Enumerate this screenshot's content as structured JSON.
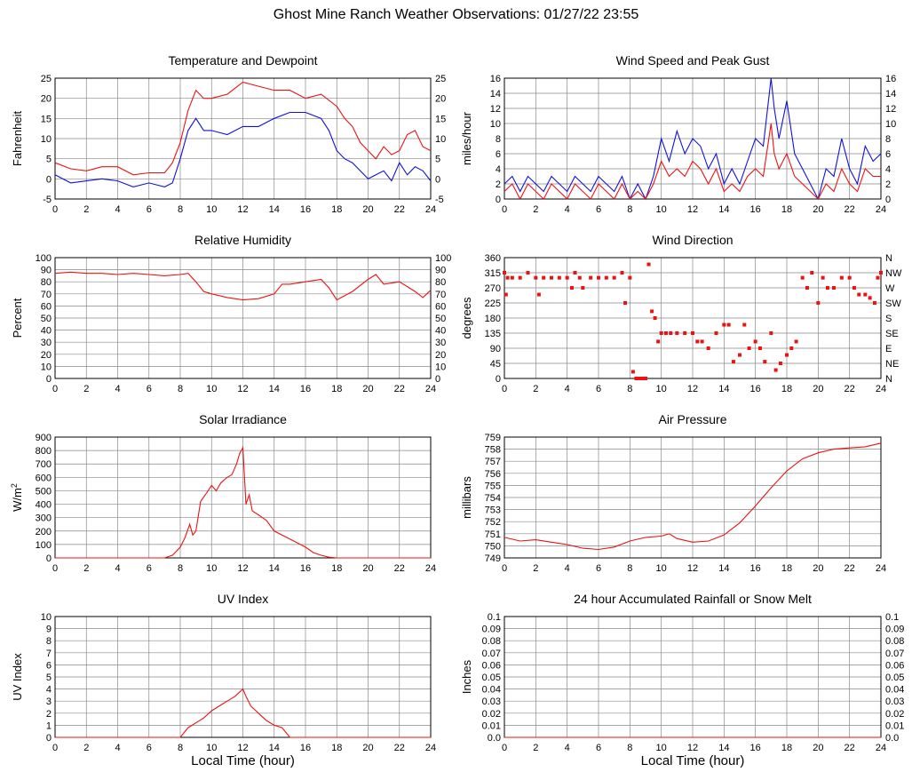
{
  "title": "Ghost Mine Ranch Weather Observations: 01/27/22 23:55",
  "colors": {
    "red": "#ee1111",
    "blue": "#1111dd",
    "grid": "#888888"
  },
  "charts": [
    {
      "id": "temperature",
      "title": "Temperature and Dewpoint",
      "ylabel": "Fahrenheit",
      "xlabel": "",
      "ylim": [
        -5,
        25
      ],
      "yticks": [
        "-5",
        "0",
        "5",
        "10",
        "15",
        "20",
        "25"
      ],
      "right_axis": true,
      "right_ticks": [
        "-5",
        "0",
        "5",
        "10",
        "15",
        "20",
        "25"
      ],
      "xticks": [
        "0",
        "2",
        "4",
        "6",
        "8",
        "10",
        "12",
        "14",
        "16",
        "18",
        "20",
        "22",
        "24"
      ],
      "type": "line",
      "series": [
        {
          "color": "red",
          "x": [
            0,
            1,
            2,
            3,
            4,
            5,
            6,
            7,
            7.5,
            8,
            8.5,
            9,
            9.5,
            10,
            11,
            12,
            13,
            14,
            15,
            16,
            17,
            18,
            18.5,
            19,
            19.5,
            20,
            20.5,
            21,
            21.5,
            22,
            22.5,
            23,
            23.5,
            24
          ],
          "y": [
            4,
            2.5,
            2,
            3,
            3,
            1,
            1.5,
            1.5,
            4,
            9,
            17,
            22,
            20,
            20,
            21,
            24,
            23,
            22,
            22,
            20,
            21,
            18,
            15,
            13,
            9,
            7,
            5,
            8,
            6,
            7,
            11,
            12,
            8,
            7
          ]
        },
        {
          "color": "blue",
          "x": [
            0,
            1,
            2,
            3,
            4,
            5,
            6,
            7,
            7.5,
            8,
            8.5,
            9,
            9.5,
            10,
            11,
            12,
            13,
            14,
            15,
            16,
            17,
            17.5,
            18,
            18.5,
            19,
            19.5,
            20,
            20.5,
            21,
            21.5,
            22,
            22.5,
            23,
            23.5,
            24
          ],
          "y": [
            1,
            -1,
            -0.5,
            0,
            -0.5,
            -2,
            -1,
            -2,
            -1,
            5,
            12,
            15,
            12,
            12,
            11,
            13,
            13,
            15,
            16.5,
            16.5,
            15,
            12,
            7,
            5,
            4,
            2,
            0,
            1,
            2,
            -0.5,
            4,
            1,
            3,
            2,
            -0.5
          ]
        }
      ]
    },
    {
      "id": "wind_speed",
      "title": "Wind Speed and Peak Gust",
      "ylabel": "miles/hour",
      "xlabel": "",
      "ylim": [
        0,
        16
      ],
      "yticks": [
        "0",
        "2",
        "4",
        "6",
        "8",
        "10",
        "12",
        "14",
        "16"
      ],
      "right_axis": true,
      "right_ticks": [
        "0",
        "2",
        "4",
        "6",
        "8",
        "10",
        "12",
        "14",
        "16"
      ],
      "xticks": [
        "0",
        "2",
        "4",
        "6",
        "8",
        "10",
        "12",
        "14",
        "16",
        "18",
        "20",
        "22",
        "24"
      ],
      "type": "line",
      "series": [
        {
          "color": "blue",
          "x": [
            0,
            0.5,
            1,
            1.5,
            2,
            2.5,
            3,
            3.5,
            4,
            4.5,
            5,
            5.5,
            6,
            6.5,
            7,
            7.5,
            8,
            8.5,
            9,
            9.5,
            10,
            10.5,
            11,
            11.5,
            12,
            12.5,
            13,
            13.5,
            14,
            14.5,
            15,
            15.5,
            16,
            16.5,
            17,
            17.2,
            17.5,
            18,
            18.5,
            19,
            19.5,
            20,
            20.5,
            21,
            21.5,
            22,
            22.5,
            23,
            23.5,
            24
          ],
          "y": [
            2,
            3,
            1,
            3,
            2,
            1,
            3,
            2,
            1,
            3,
            2,
            1,
            3,
            2,
            1,
            3,
            0,
            2,
            0,
            3,
            8,
            5,
            9,
            6,
            8,
            7,
            4,
            6,
            2,
            4,
            2,
            5,
            8,
            7,
            16,
            12,
            8,
            13,
            6,
            4,
            2,
            0,
            4,
            3,
            8,
            4,
            2,
            7,
            5,
            6
          ]
        },
        {
          "color": "red",
          "x": [
            0,
            0.5,
            1,
            1.5,
            2,
            2.5,
            3,
            3.5,
            4,
            4.5,
            5,
            5.5,
            6,
            6.5,
            7,
            7.5,
            8,
            8.5,
            9,
            9.5,
            10,
            10.5,
            11,
            11.5,
            12,
            12.5,
            13,
            13.5,
            14,
            14.5,
            15,
            15.5,
            16,
            16.5,
            17,
            17.2,
            17.5,
            18,
            18.5,
            19,
            19.5,
            20,
            20.5,
            21,
            21.5,
            22,
            22.5,
            23,
            23.5,
            24
          ],
          "y": [
            1,
            2,
            0,
            2,
            1,
            0,
            2,
            1,
            0,
            2,
            1,
            0,
            2,
            1,
            0,
            2,
            0,
            1,
            0,
            2,
            5,
            3,
            4,
            3,
            5,
            4,
            2,
            4,
            1,
            2,
            1,
            3,
            4,
            3,
            10,
            6,
            4,
            6,
            3,
            2,
            1,
            0,
            2,
            1,
            4,
            2,
            1,
            4,
            3,
            3
          ]
        }
      ]
    },
    {
      "id": "humidity",
      "title": "Relative Humidity",
      "ylabel": "Percent",
      "xlabel": "",
      "ylim": [
        0,
        100
      ],
      "yticks": [
        "0",
        "10",
        "20",
        "30",
        "40",
        "50",
        "60",
        "70",
        "80",
        "90",
        "100"
      ],
      "right_axis": true,
      "right_ticks": [
        "0",
        "10",
        "20",
        "30",
        "40",
        "50",
        "60",
        "70",
        "80",
        "90",
        "100"
      ],
      "xticks": [
        "0",
        "2",
        "4",
        "6",
        "8",
        "10",
        "12",
        "14",
        "16",
        "18",
        "20",
        "22",
        "24"
      ],
      "type": "line",
      "series": [
        {
          "color": "red",
          "x": [
            0,
            1,
            2,
            3,
            4,
            5,
            6,
            7,
            8,
            8.5,
            9,
            9.5,
            10,
            11,
            12,
            13,
            14,
            14.5,
            15,
            16,
            17,
            17.5,
            18,
            19,
            20,
            20.5,
            21,
            22,
            22.5,
            23,
            23.5,
            24
          ],
          "y": [
            87,
            88,
            87,
            87,
            86,
            87,
            86,
            85,
            86,
            87,
            80,
            72,
            70,
            67,
            65,
            66,
            70,
            78,
            78,
            80,
            82,
            75,
            65,
            72,
            82,
            86,
            78,
            80,
            76,
            72,
            67,
            73
          ]
        }
      ]
    },
    {
      "id": "wind_direction",
      "title": "Wind Direction",
      "ylabel": "degrees",
      "xlabel": "",
      "ylim": [
        0,
        360
      ],
      "yticks": [
        "0",
        "45",
        "90",
        "135",
        "180",
        "225",
        "270",
        "315",
        "360"
      ],
      "right_axis": true,
      "right_ticks": [
        "N",
        "NE",
        "E",
        "SE",
        "S",
        "SW",
        "W",
        "NW",
        "N"
      ],
      "xticks": [
        "0",
        "2",
        "4",
        "6",
        "8",
        "10",
        "12",
        "14",
        "16",
        "18",
        "20",
        "22",
        "24"
      ],
      "type": "scatter",
      "series": [
        {
          "color": "red",
          "x": [
            0,
            0.1,
            0.2,
            0.5,
            1,
            1.5,
            2,
            2.2,
            2.5,
            3,
            3.5,
            4,
            4.3,
            4.5,
            4.8,
            5,
            5.5,
            6,
            6.5,
            7,
            7.5,
            7.7,
            8,
            8.2,
            8.4,
            8.6,
            8.8,
            9,
            9.2,
            9.4,
            9.6,
            9.8,
            10,
            10.3,
            10.6,
            11,
            11.5,
            12,
            12.3,
            12.6,
            13,
            13.5,
            14,
            14.3,
            14.6,
            15,
            15.3,
            15.6,
            16,
            16.3,
            16.6,
            17,
            17.3,
            17.6,
            18,
            18.3,
            18.6,
            19,
            19.3,
            19.6,
            20,
            20.3,
            20.6,
            21,
            21.5,
            22,
            22.3,
            22.6,
            23,
            23.3,
            23.6,
            23.8,
            24
          ],
          "y": [
            315,
            250,
            300,
            300,
            300,
            315,
            300,
            250,
            300,
            300,
            300,
            300,
            270,
            315,
            300,
            270,
            300,
            300,
            300,
            300,
            315,
            225,
            300,
            20,
            0,
            0,
            0,
            0,
            340,
            200,
            180,
            110,
            135,
            135,
            135,
            135,
            135,
            135,
            110,
            110,
            90,
            135,
            160,
            160,
            50,
            70,
            160,
            90,
            110,
            90,
            50,
            135,
            25,
            45,
            70,
            90,
            110,
            300,
            270,
            315,
            225,
            300,
            270,
            270,
            300,
            300,
            270,
            250,
            250,
            240,
            225,
            300,
            315
          ]
        }
      ]
    },
    {
      "id": "solar",
      "title": "Solar Irradiance",
      "ylabel": "W/m2",
      "xlabel": "",
      "ylim": [
        0,
        900
      ],
      "yticks": [
        "0",
        "100",
        "200",
        "300",
        "400",
        "500",
        "600",
        "700",
        "800",
        "900"
      ],
      "right_axis": false,
      "right_ticks": [],
      "xticks": [
        "0",
        "2",
        "4",
        "6",
        "8",
        "10",
        "12",
        "14",
        "16",
        "18",
        "20",
        "22",
        "24"
      ],
      "type": "line",
      "series": [
        {
          "color": "red",
          "x": [
            0,
            7,
            7.5,
            8,
            8.3,
            8.6,
            8.8,
            9,
            9.3,
            9.6,
            10,
            10.3,
            10.6,
            11,
            11.3,
            11.6,
            11.8,
            12,
            12.2,
            12.4,
            12.6,
            13,
            13.5,
            14,
            15,
            16,
            16.5,
            17,
            17.5,
            18,
            24
          ],
          "y": [
            0,
            0,
            20,
            80,
            150,
            250,
            170,
            200,
            420,
            470,
            540,
            500,
            560,
            600,
            620,
            700,
            780,
            820,
            400,
            470,
            350,
            320,
            280,
            200,
            140,
            80,
            40,
            20,
            5,
            0,
            0
          ]
        }
      ]
    },
    {
      "id": "pressure",
      "title": "Air Pressure",
      "ylabel": "millibars",
      "xlabel": "",
      "ylim": [
        749,
        759
      ],
      "yticks": [
        "749",
        "750",
        "751",
        "752",
        "753",
        "754",
        "755",
        "756",
        "757",
        "758",
        "759"
      ],
      "right_axis": false,
      "right_ticks": [],
      "xticks": [
        "0",
        "2",
        "4",
        "6",
        "8",
        "10",
        "12",
        "14",
        "16",
        "18",
        "20",
        "22",
        "24"
      ],
      "type": "line",
      "series": [
        {
          "color": "red",
          "x": [
            0,
            1,
            2,
            3,
            4,
            5,
            6,
            7,
            8,
            9,
            10,
            10.5,
            11,
            12,
            13,
            14,
            15,
            16,
            17,
            18,
            19,
            20,
            21,
            22,
            23,
            24
          ],
          "y": [
            750.7,
            750.4,
            750.5,
            750.3,
            750.1,
            749.8,
            749.7,
            749.9,
            750.4,
            750.7,
            750.8,
            751.0,
            750.6,
            750.3,
            750.4,
            750.9,
            751.9,
            753.3,
            754.8,
            756.2,
            757.2,
            757.7,
            758.0,
            758.1,
            758.2,
            758.5
          ]
        }
      ]
    },
    {
      "id": "uv",
      "title": "UV Index",
      "ylabel": "UV Index",
      "xlabel": "Local Time (hour)",
      "ylim": [
        0,
        10
      ],
      "yticks": [
        "0",
        "1",
        "2",
        "3",
        "4",
        "5",
        "6",
        "7",
        "8",
        "9",
        "10"
      ],
      "right_axis": false,
      "right_ticks": [],
      "xticks": [
        "0",
        "2",
        "4",
        "6",
        "8",
        "10",
        "12",
        "14",
        "16",
        "18",
        "20",
        "22",
        "24"
      ],
      "type": "line",
      "series": [
        {
          "color": "red",
          "x": [
            0,
            8,
            8.5,
            9,
            9.5,
            10,
            10.5,
            11,
            11.5,
            12,
            12.2,
            12.5,
            13,
            13.5,
            14,
            14.5,
            15,
            24
          ],
          "y": [
            0,
            0,
            0.8,
            1.2,
            1.6,
            2.2,
            2.6,
            3.0,
            3.4,
            4.0,
            3.4,
            2.6,
            2.0,
            1.4,
            1.0,
            0.8,
            0,
            0
          ]
        }
      ]
    },
    {
      "id": "rainfall",
      "title": "24 hour Accumulated Rainfall or Snow Melt",
      "ylabel": "Inches",
      "xlabel": "Local Time (hour)",
      "ylim": [
        0,
        0.1
      ],
      "yticks": [
        "0.0",
        "0.01",
        "0.02",
        "0.03",
        "0.04",
        "0.05",
        "0.06",
        "0.07",
        "0.08",
        "0.09",
        "0.1"
      ],
      "right_axis": true,
      "right_ticks": [
        "0.0",
        "0.01",
        "0.02",
        "0.03",
        "0.04",
        "0.05",
        "0.06",
        "0.07",
        "0.08",
        "0.09",
        "0.1"
      ],
      "xticks": [
        "0",
        "2",
        "4",
        "6",
        "8",
        "10",
        "12",
        "14",
        "16",
        "18",
        "20",
        "22",
        "24"
      ],
      "type": "line",
      "series": [
        {
          "color": "red",
          "x": [
            0,
            24
          ],
          "y": [
            0,
            0
          ]
        }
      ]
    }
  ]
}
